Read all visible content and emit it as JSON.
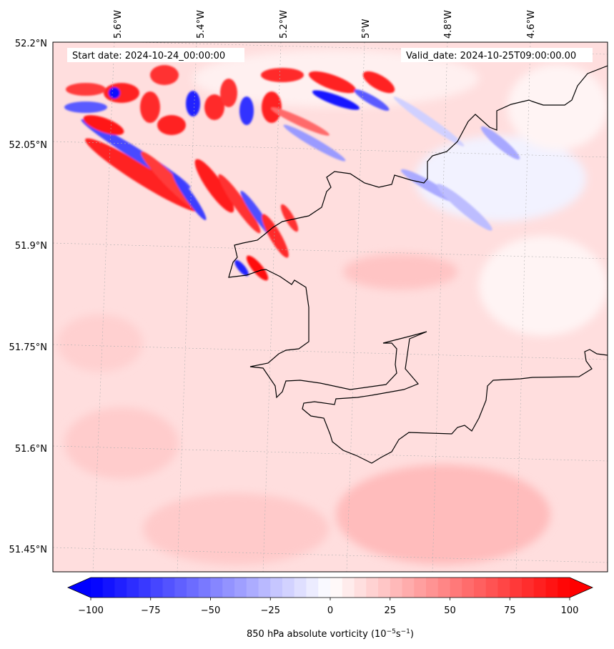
{
  "map": {
    "header_left": "Start date: 2024-10-24_00:00:00",
    "header_right": "Valid_date: 2024-10-25T09:00:00.00",
    "lon_labels": [
      "5.6°W",
      "5.4°W",
      "5.2°W",
      "5°W",
      "4.8°W",
      "4.6°W"
    ],
    "lat_labels": [
      "52.2°N",
      "52.05°N",
      "51.9°N",
      "51.75°N",
      "51.6°N",
      "51.45°N"
    ],
    "field_name": "850 hPa absolute vorticity",
    "field_units_base": "10",
    "field_units_exp1": "−5",
    "field_units_s": "s",
    "field_units_exp2": "−1",
    "field_units_open": "(",
    "field_units_close": ")"
  },
  "colorbar": {
    "ticks": [
      "−100",
      "−75",
      "−50",
      "−25",
      "0",
      "25",
      "50",
      "75",
      "100"
    ],
    "range": [
      -100,
      100
    ],
    "levels": 40,
    "color_negative": "#0000ff",
    "color_zero": "#ffffff",
    "color_positive": "#ff0000",
    "extend": "both"
  },
  "colors": {
    "coastline": "#000000",
    "grid": "#b0b0b0",
    "background_field": "#ffd4d4"
  }
}
